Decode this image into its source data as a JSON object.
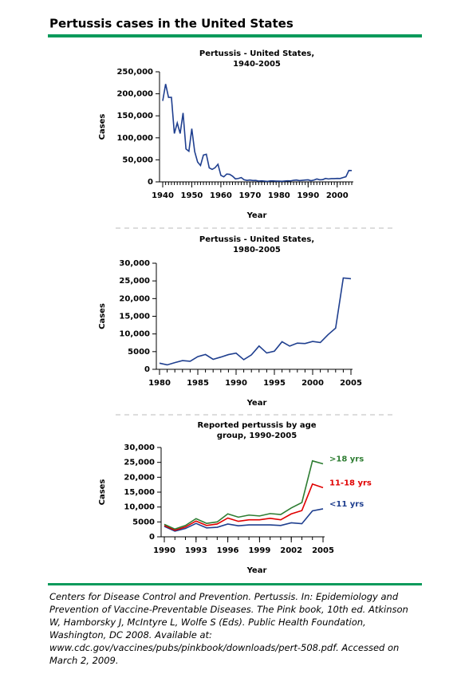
{
  "title": "Pertussis cases in the United States",
  "citation": [
    "Centers for Disease Control and Prevention. Pertussis. In: Epidemiology and",
    "Prevention of Vaccine-Preventable Diseases. The Pink book, 10th ed. Atkinson",
    "W, Hamborsky J, McIntyre L, Wolfe S (Eds). Public Health Foundation,",
    "Washington, DC 2008. Available at:",
    "www.cdc.gov/vaccines/pubs/pinkbook/downloads/pert-508.pdf. Accessed on",
    "March 2, 2009."
  ],
  "chart_data": [
    {
      "type": "line",
      "title": [
        "Pertussis - United States,",
        "1940-2005"
      ],
      "x_label": "Year",
      "y_label": "Cases",
      "x": [
        1940,
        1941,
        1942,
        1943,
        1944,
        1945,
        1946,
        1947,
        1948,
        1949,
        1950,
        1951,
        1952,
        1953,
        1954,
        1955,
        1956,
        1957,
        1958,
        1959,
        1960,
        1961,
        1962,
        1963,
        1964,
        1965,
        1966,
        1967,
        1968,
        1969,
        1970,
        1971,
        1972,
        1973,
        1974,
        1975,
        1976,
        1977,
        1978,
        1979,
        1980,
        1981,
        1982,
        1983,
        1984,
        1985,
        1986,
        1987,
        1988,
        1989,
        1990,
        1991,
        1992,
        1993,
        1994,
        1995,
        1996,
        1997,
        1998,
        1999,
        2000,
        2001,
        2002,
        2003,
        2004,
        2005
      ],
      "series": [
        {
          "name": "Cases",
          "color": "#1f3f8f",
          "values": [
            183866,
            222202,
            191890,
            191943,
            109873,
            133792,
            109860,
            156517,
            74715,
            69479,
            120718,
            68687,
            45030,
            37129,
            60886,
            62786,
            31732,
            28295,
            32148,
            40005,
            14809,
            11468,
            17749,
            17135,
            13005,
            6799,
            7717,
            9718,
            4810,
            3285,
            4249,
            3036,
            3287,
            1759,
            2402,
            1738,
            1010,
            2177,
            2063,
            1623,
            1730,
            1248,
            1895,
            2463,
            2276,
            3589,
            4195,
            2823,
            3450,
            4157,
            4570,
            2719,
            4083,
            6586,
            4617,
            5137,
            7796,
            6564,
            7405,
            7288,
            7867,
            7580,
            9771,
            11647,
            25827,
            25616
          ]
        }
      ],
      "xlim": [
        1940,
        2005
      ],
      "xticks": [
        1940,
        1950,
        1960,
        1970,
        1980,
        1990,
        2000
      ],
      "ylim": [
        0,
        250000
      ],
      "yticks": [
        0,
        {
          "value": 50000,
          "label": "50,000"
        },
        {
          "value": 100000,
          "label": "100,000"
        },
        {
          "value": 150000,
          "label": "150,000"
        },
        {
          "value": 200000,
          "label": "200,000"
        },
        {
          "value": 250000,
          "label": "250,000"
        }
      ]
    },
    {
      "type": "line",
      "title": [
        "Pertussis - United States,",
        "1980-2005"
      ],
      "x_label": "Year",
      "y_label": "Cases",
      "x": [
        1980,
        1981,
        1982,
        1983,
        1984,
        1985,
        1986,
        1987,
        1988,
        1989,
        1990,
        1991,
        1992,
        1993,
        1994,
        1995,
        1996,
        1997,
        1998,
        1999,
        2000,
        2001,
        2002,
        2003,
        2004,
        2005
      ],
      "series": [
        {
          "name": "Cases",
          "color": "#1f3f8f",
          "values": [
            1730,
            1248,
            1895,
            2463,
            2276,
            3589,
            4195,
            2823,
            3450,
            4157,
            4570,
            2719,
            4083,
            6586,
            4617,
            5137,
            7796,
            6564,
            7405,
            7288,
            7867,
            7580,
            9771,
            11647,
            25827,
            25616
          ]
        }
      ],
      "xlim": [
        1980,
        2005
      ],
      "xticks": [
        1980,
        1985,
        1990,
        1995,
        2000,
        2005
      ],
      "ylim": [
        0,
        30000
      ],
      "yticks": [
        0,
        5000,
        {
          "value": 10000,
          "label": "10,000"
        },
        {
          "value": 15000,
          "label": "15,000"
        },
        {
          "value": 20000,
          "label": "20,000"
        },
        {
          "value": 25000,
          "label": "25,000"
        },
        {
          "value": 30000,
          "label": "30,000"
        }
      ]
    },
    {
      "type": "line",
      "stacked": true,
      "title": [
        "Reported pertussis by age",
        "group, 1990-2005"
      ],
      "x_label": "Year",
      "y_label": "Cases",
      "x": [
        1990,
        1991,
        1992,
        1993,
        1994,
        1995,
        1996,
        1997,
        1998,
        1999,
        2000,
        2001,
        2002,
        2003,
        2004,
        2005
      ],
      "series": [
        {
          "name": "<11 yrs",
          "color": "#1f3f8f",
          "values": [
            3500,
            1900,
            2800,
            4500,
            3000,
            3200,
            4300,
            3700,
            4000,
            4000,
            4000,
            3800,
            4700,
            4400,
            8700,
            9400
          ]
        },
        {
          "name": "11-18 yrs",
          "color": "#e00000",
          "values": [
            300,
            300,
            500,
            800,
            800,
            1100,
            2000,
            1500,
            1700,
            1700,
            2200,
            1900,
            3000,
            4400,
            9000,
            7100
          ]
        },
        {
          "name": ">18 yrs",
          "color": "#2e7d32",
          "values": [
            400,
            400,
            500,
            800,
            700,
            700,
            1400,
            1400,
            1600,
            1300,
            1600,
            1800,
            2000,
            2700,
            7800,
            8000
          ]
        }
      ],
      "xlim": [
        1990,
        2005
      ],
      "xticks": [
        1990,
        1993,
        1996,
        1999,
        2002,
        2005
      ],
      "ylim": [
        0,
        30000
      ],
      "yticks": [
        0,
        5000,
        {
          "value": 10000,
          "label": "10,000"
        },
        {
          "value": 15000,
          "label": "15,000"
        },
        {
          "value": 20000,
          "label": "20,000"
        },
        {
          "value": 25000,
          "label": "25,000"
        },
        {
          "value": 30000,
          "label": "30,000"
        }
      ]
    }
  ]
}
